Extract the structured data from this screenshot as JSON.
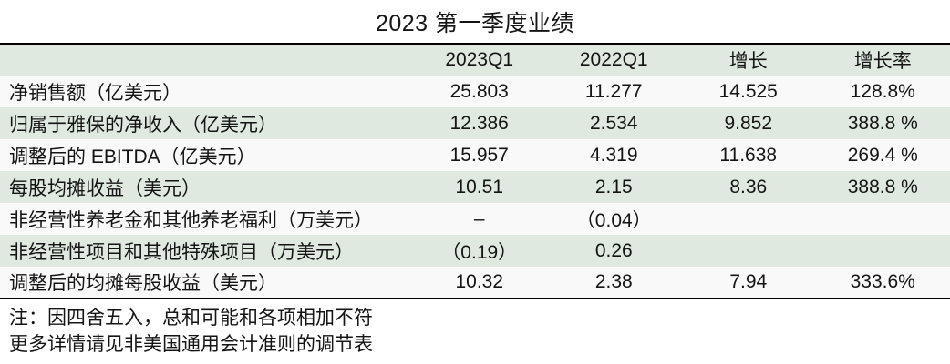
{
  "title": "2023 第一季度业绩",
  "table": {
    "columns": [
      "",
      "2023Q1",
      "2022Q1",
      "增长",
      "增长率"
    ],
    "rows": [
      {
        "label": "净销售额（亿美元）",
        "values": [
          "25.803",
          "11.277",
          "14.525",
          "128.8%"
        ]
      },
      {
        "label": "归属于雅保的净收入（亿美元）",
        "values": [
          "12.386",
          "2.534",
          "9.852",
          "388.8 %"
        ]
      },
      {
        "label": "调整后的 EBITDA（亿美元）",
        "values": [
          "15.957",
          "4.319",
          "11.638",
          "269.4 %"
        ]
      },
      {
        "label": "每股均摊收益（美元）",
        "values": [
          "10.51",
          "2.15",
          "8.36",
          "388.8 %"
        ]
      },
      {
        "label": "非经营性养老金和其他养老福利（万美元）",
        "values": [
          "–",
          "（0.04）",
          "",
          ""
        ]
      },
      {
        "label": "非经营性项目和其他特殊项目（万美元）",
        "values": [
          "（0.19）",
          "0.26",
          "",
          ""
        ]
      },
      {
        "label": "调整后的均摊每股收益（美元）",
        "values": [
          "10.32",
          "2.38",
          "7.94",
          "333.6%"
        ]
      }
    ]
  },
  "notes": [
    "注：因四舍五入，总和可能和各项相加不符",
    "更多详情请见非美国通用会计准则的调节表"
  ],
  "colors": {
    "row_green": "#dfe9df",
    "row_white": "#f9f9f9",
    "rule_black": "#000000"
  }
}
